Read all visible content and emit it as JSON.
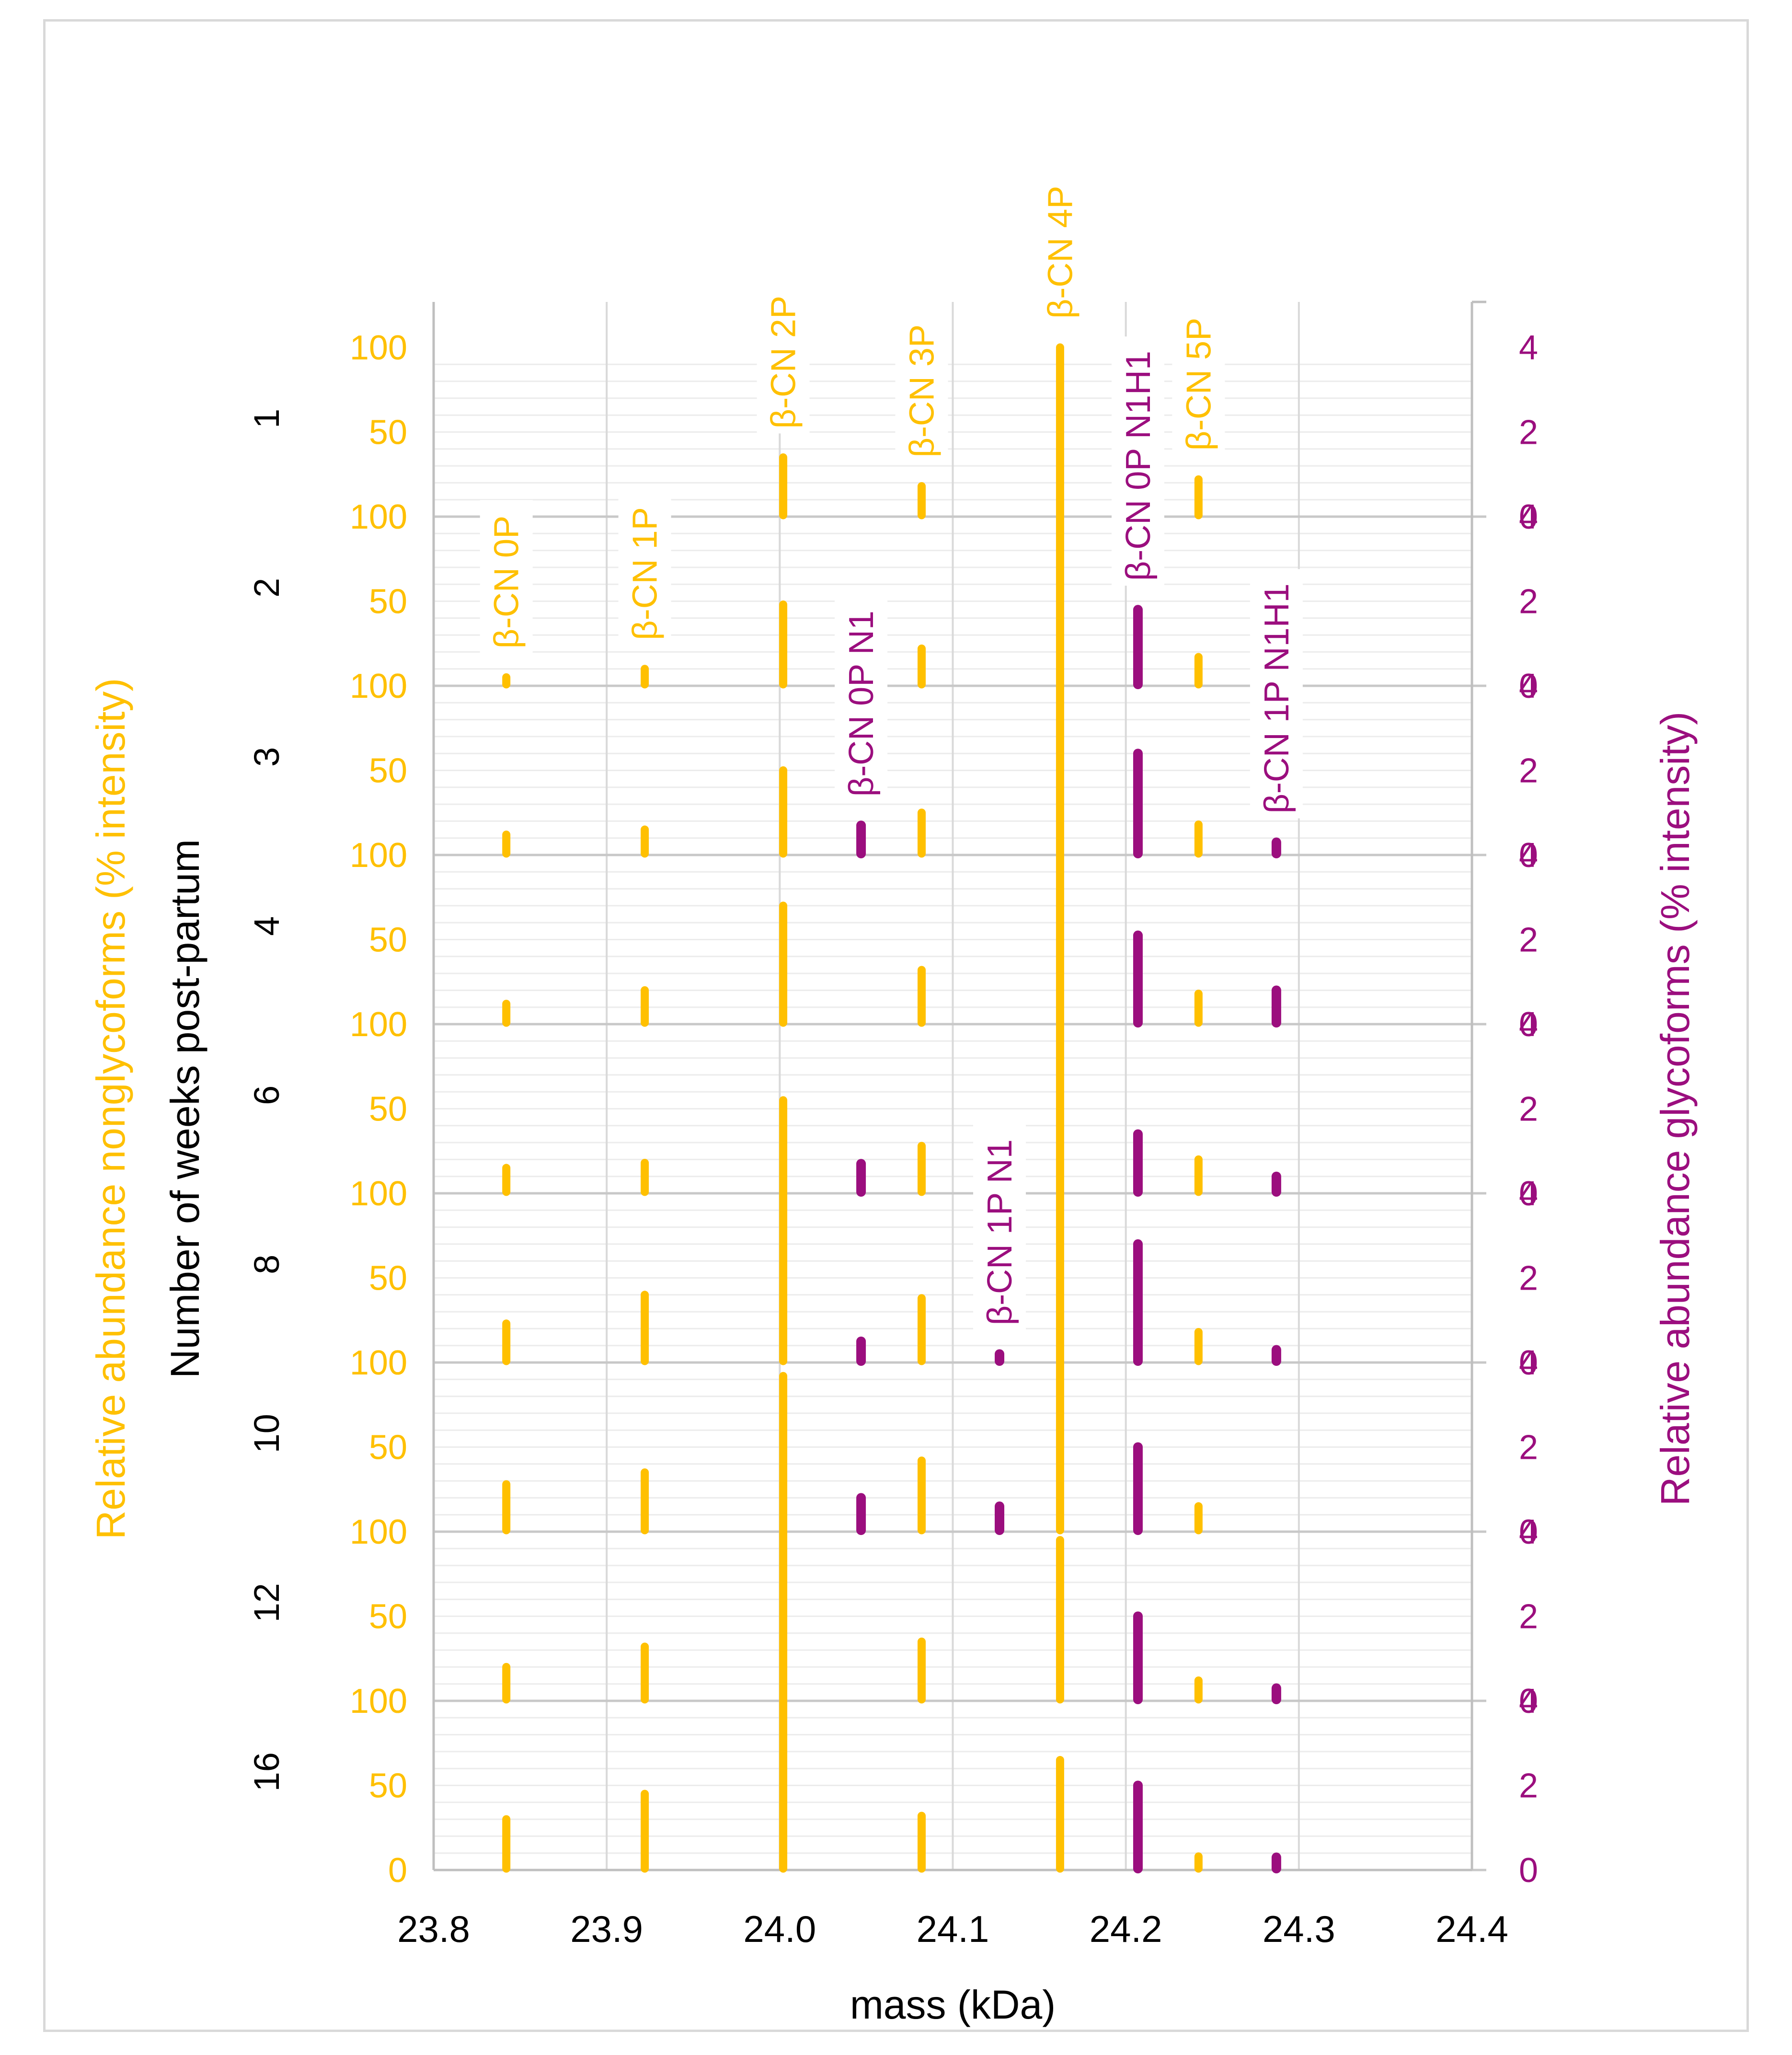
{
  "chart_data": {
    "type": "bar",
    "subtype": "stacked-panels-stick-spectrum",
    "xlabel": "mass (kDa)",
    "xlim": [
      23.8,
      24.4
    ],
    "x_ticks": [
      "23.8",
      "23.9",
      "24.0",
      "24.1",
      "24.2",
      "24.3",
      "24.4"
    ],
    "panel_axis_label": "Number of weeks post-partum",
    "panels": [
      "1",
      "2",
      "3",
      "4",
      "6",
      "8",
      "10",
      "12",
      "16"
    ],
    "left_axis": {
      "label_part1": "Relative abundance nonglycoforms",
      "label_part2": "(% intensity)",
      "ticks": [
        "0",
        "50",
        "100"
      ],
      "range": [
        0,
        100
      ],
      "color": "#FFC000"
    },
    "right_axis": {
      "label": "Relative abundance glycoforms (% intensity)",
      "ticks": [
        "0",
        "2",
        "4"
      ],
      "range": [
        0,
        4
      ],
      "color": "#9B0E7E"
    },
    "series": [
      {
        "name": "β-CN 0P",
        "type": "nonglycoform",
        "mass": 23.842,
        "label_pos": "mid",
        "values": [
          0,
          5,
          12,
          12,
          15,
          23,
          28,
          20,
          30
        ]
      },
      {
        "name": "β-CN 1P",
        "type": "nonglycoform",
        "mass": 23.922,
        "label_pos": "mid",
        "values": [
          0,
          10,
          15,
          20,
          18,
          40,
          35,
          32,
          45
        ]
      },
      {
        "name": "β-CN 2P",
        "type": "nonglycoform",
        "mass": 24.002,
        "label_pos": "top",
        "values": [
          35,
          48,
          50,
          70,
          55,
          100,
          92,
          100,
          100
        ]
      },
      {
        "name": "β-CN 3P",
        "type": "nonglycoform",
        "mass": 24.082,
        "label_pos": "top",
        "values": [
          18,
          22,
          25,
          32,
          28,
          38,
          42,
          35,
          32
        ]
      },
      {
        "name": "β-CN 4P",
        "type": "nonglycoform",
        "mass": 24.162,
        "label_pos": "top",
        "values": [
          100,
          100,
          100,
          100,
          100,
          100,
          100,
          95,
          65
        ]
      },
      {
        "name": "β-CN 5P",
        "type": "nonglycoform",
        "mass": 24.242,
        "label_pos": "top",
        "values": [
          22,
          17,
          18,
          18,
          20,
          18,
          15,
          12,
          8
        ]
      },
      {
        "name": "β-CN 0P N1",
        "type": "glycoform",
        "mass": 24.047,
        "label_pos": "mid",
        "values": [
          0,
          0,
          0.7,
          0,
          0.7,
          0.5,
          0.8,
          0,
          0
        ]
      },
      {
        "name": "β-CN 1P N1",
        "type": "glycoform",
        "mass": 24.127,
        "label_pos": "low",
        "values": [
          0,
          0,
          0,
          0,
          0,
          0.2,
          0.6,
          0,
          0
        ]
      },
      {
        "name": "β-CN 0P N1H1",
        "type": "glycoform",
        "mass": 24.207,
        "label_pos": "top",
        "values": [
          0,
          1.8,
          2.4,
          2.1,
          1.4,
          2.8,
          2.0,
          2.0,
          2.0
        ]
      },
      {
        "name": "β-CN 1P N1H1",
        "type": "glycoform",
        "mass": 24.287,
        "label_pos": "mid",
        "values": [
          0,
          0,
          0.3,
          0.8,
          0.4,
          0.3,
          0,
          0.3,
          0.3
        ]
      }
    ],
    "grid": true,
    "colors": {
      "nonglycoform": "#FFC000",
      "glycoform": "#9B0E7E",
      "grid": "#d9d9d9",
      "text": "#000000"
    }
  }
}
